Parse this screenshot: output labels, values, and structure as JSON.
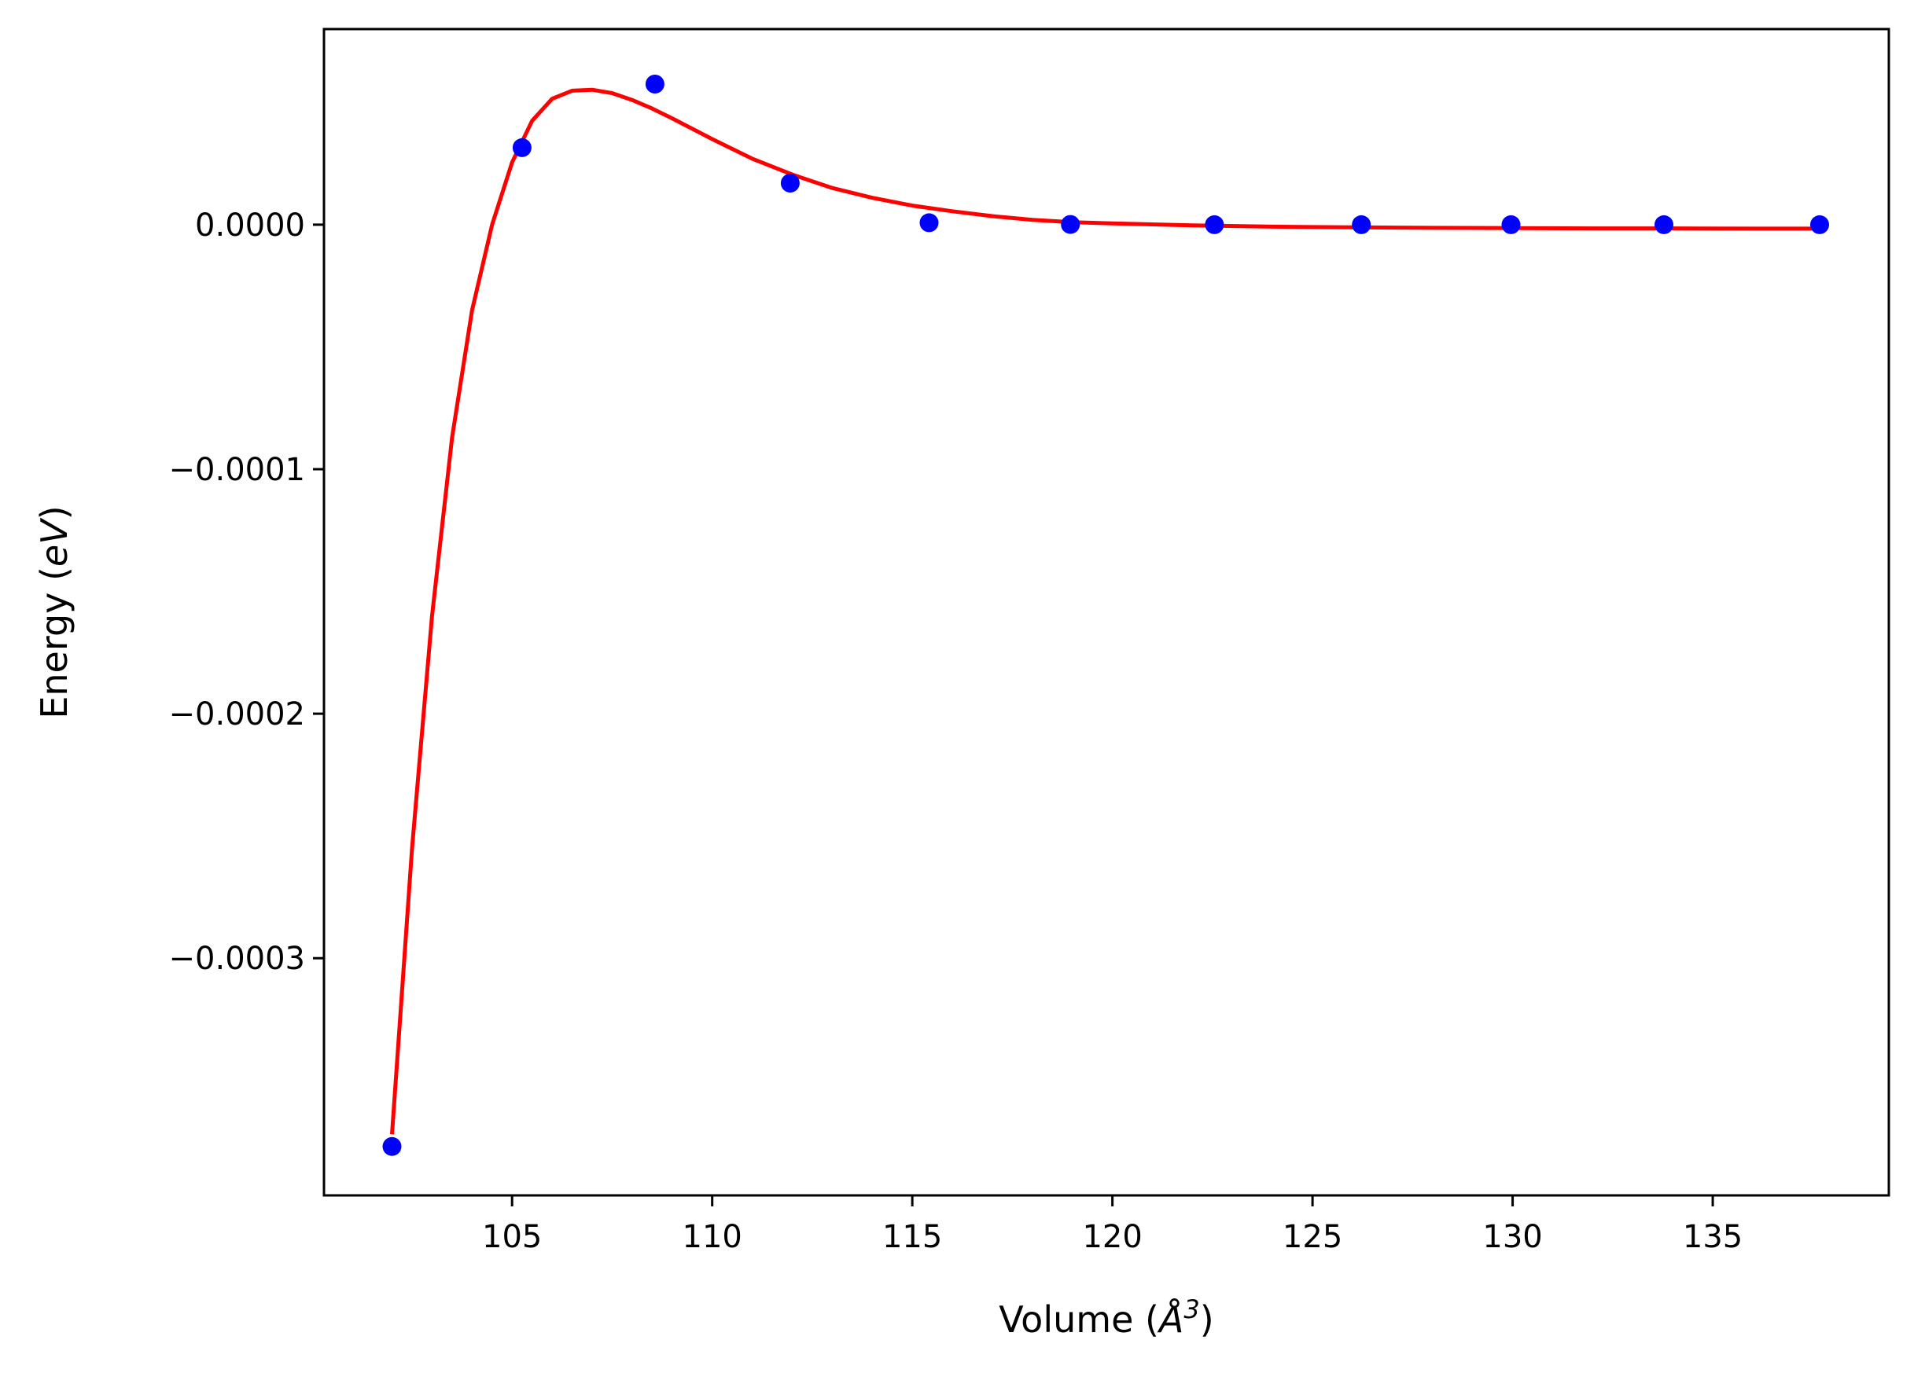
{
  "chart_data": {
    "type": "scatter",
    "xlabel_text": "Volume (",
    "xlabel_symbol": "Å",
    "xlabel_exp": "3",
    "xlabel_close": ")",
    "ylabel_text": "Energy (",
    "ylabel_unit": "eV",
    "ylabel_close": ")",
    "xlim": [
      100.3,
      139.4
    ],
    "ylim": [
      -0.000397,
      8e-05
    ],
    "x_ticks": [
      105,
      110,
      115,
      120,
      125,
      130,
      135
    ],
    "x_tick_labels": [
      "105",
      "110",
      "115",
      "120",
      "125",
      "130",
      "135"
    ],
    "y_ticks": [
      0.0,
      -0.0001,
      -0.0002,
      -0.0003
    ],
    "y_tick_labels": [
      "0.0000",
      "−0.0001",
      "−0.0002",
      "−0.0003"
    ],
    "grid": false,
    "series": [
      {
        "kind": "points",
        "color": "#0000ff",
        "x": [
          102.0,
          105.25,
          108.57,
          111.95,
          115.42,
          118.95,
          122.55,
          126.22,
          129.96,
          133.78,
          137.67
        ],
        "y": [
          -0.000377,
          3.15e-05,
          5.75e-05,
          1.7e-05,
          8e-07,
          1e-07,
          0.0,
          0.0,
          0.0,
          0.0,
          0.0
        ]
      },
      {
        "kind": "fit-curve",
        "color": "#ff0000",
        "x": [
          102.0,
          102.5,
          103.0,
          103.5,
          104.0,
          104.5,
          105.0,
          105.5,
          106.0,
          106.5,
          107.0,
          107.5,
          108.0,
          108.5,
          109.0,
          110.0,
          111.0,
          112.0,
          113.0,
          114.0,
          115.0,
          116.0,
          117.0,
          118.0,
          119.0,
          120.0,
          122.0,
          124.0,
          126.0,
          128.0,
          130.0,
          132.0,
          134.0,
          136.0,
          137.67
        ],
        "y": [
          -0.000372,
          -0.000255,
          -0.00016,
          -8.7e-05,
          -3.5e-05,
          0.0,
          2.55e-05,
          4.25e-05,
          5.15e-05,
          5.48e-05,
          5.52e-05,
          5.38e-05,
          5.1e-05,
          4.75e-05,
          4.35e-05,
          3.5e-05,
          2.7e-05,
          2.05e-05,
          1.5e-05,
          1.1e-05,
          7.8e-06,
          5.5e-06,
          3.5e-06,
          2e-06,
          1e-06,
          5e-07,
          -3e-07,
          -8e-07,
          -1.1e-06,
          -1.3e-06,
          -1.4e-06,
          -1.5e-06,
          -1.5e-06,
          -1.6e-06,
          -1.6e-06
        ]
      }
    ]
  }
}
